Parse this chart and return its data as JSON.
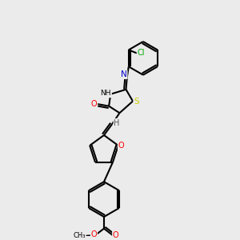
{
  "background_color": "#ebebeb",
  "bond_color": "#000000",
  "atom_colors": {
    "N": "#0000cc",
    "O": "#ff0000",
    "S": "#cccc00",
    "Cl": "#00aa00",
    "H": "#555555",
    "C": "#000000"
  },
  "figsize": [
    3.0,
    3.0
  ],
  "dpi": 100
}
